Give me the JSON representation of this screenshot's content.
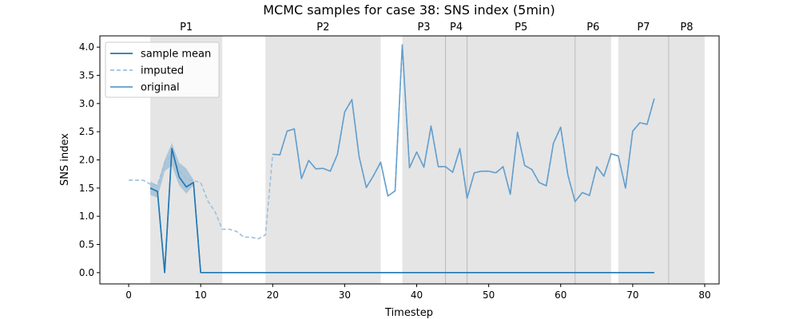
{
  "chart_data": {
    "type": "line",
    "title": "MCMC samples for case 38: SNS index (5min)",
    "xlabel": "Timestep",
    "ylabel": "SNS index",
    "xlim": [
      -4,
      82
    ],
    "ylim": [
      -0.2,
      4.2
    ],
    "xticks": [
      0,
      10,
      20,
      30,
      40,
      50,
      60,
      70,
      80
    ],
    "yticks": [
      0.0,
      0.5,
      1.0,
      1.5,
      2.0,
      2.5,
      3.0,
      3.5,
      4.0
    ],
    "ytick_labels": [
      "0.0",
      "0.5",
      "1.0",
      "1.5",
      "2.0",
      "2.5",
      "3.0",
      "3.5",
      "4.0"
    ],
    "grid": false,
    "legend_position": "top-left",
    "periods": [
      {
        "label": "P1",
        "start": 3,
        "end": 13
      },
      {
        "label": "P2",
        "start": 19,
        "end": 35
      },
      {
        "label": "P3",
        "start": 38,
        "end": 44
      },
      {
        "label": "P4",
        "start": 44,
        "end": 47
      },
      {
        "label": "P5",
        "start": 47,
        "end": 62
      },
      {
        "label": "P6",
        "start": 62,
        "end": 67
      },
      {
        "label": "P7",
        "start": 68,
        "end": 75
      },
      {
        "label": "P8",
        "start": 75,
        "end": 80
      }
    ],
    "period_color": "#e5e5e5",
    "series": [
      {
        "name": "sample mean",
        "color": "#1f77b4",
        "style": "solid",
        "x": [
          3,
          4,
          5,
          6,
          7,
          8,
          9,
          10,
          11,
          12,
          13,
          20,
          30,
          40,
          50,
          60,
          70,
          73
        ],
        "y": [
          1.5,
          1.44,
          0.0,
          2.2,
          1.7,
          1.52,
          1.6,
          0.0,
          0.0,
          0.0,
          0.0,
          0.0,
          0.0,
          0.0,
          0.0,
          0.0,
          0.0,
          0.0
        ]
      },
      {
        "name": "imputed",
        "color": "#9ec0dc",
        "style": "dashed",
        "x": [
          0,
          1,
          2,
          3,
          4,
          5,
          6,
          7,
          8,
          9,
          10,
          11,
          12,
          13,
          14,
          15,
          16,
          17,
          18,
          19,
          20,
          21,
          22,
          23,
          24,
          25,
          26,
          27,
          28,
          29,
          30,
          31,
          32,
          33,
          34,
          35,
          36,
          37,
          38,
          39,
          40,
          41,
          42,
          43,
          44,
          45,
          46,
          47,
          48,
          49,
          50,
          51,
          52,
          53,
          54,
          55,
          56,
          57,
          58,
          59,
          60,
          61,
          62,
          63,
          64,
          65,
          66,
          67,
          68,
          69,
          70,
          71,
          72,
          73
        ],
        "y": [
          1.64,
          1.64,
          1.64,
          1.57,
          1.55,
          1.95,
          2.1,
          1.82,
          1.66,
          1.63,
          1.6,
          1.27,
          1.08,
          0.77,
          0.77,
          0.73,
          0.63,
          0.63,
          0.6,
          0.67,
          2.1,
          2.09,
          2.51,
          2.55,
          1.67,
          1.99,
          1.84,
          1.85,
          1.8,
          2.1,
          2.85,
          3.07,
          2.06,
          1.51,
          1.72,
          1.96,
          1.36,
          1.45,
          4.04,
          1.86,
          2.14,
          1.87,
          2.6,
          1.88,
          1.88,
          1.78,
          2.2,
          1.32,
          1.77,
          1.8,
          1.8,
          1.77,
          1.88,
          1.39,
          2.49,
          1.9,
          1.83,
          1.6,
          1.54,
          2.3,
          2.58,
          1.73,
          1.26,
          1.42,
          1.37,
          1.88,
          1.71,
          2.11,
          2.07,
          1.5,
          2.51,
          2.66,
          2.63,
          3.09
        ]
      },
      {
        "name": "original",
        "color": "#5f9ccb",
        "style": "solid",
        "x": [
          3,
          4,
          5,
          6,
          7,
          8,
          9,
          10,
          null,
          20,
          21,
          22,
          23,
          24,
          25,
          26,
          27,
          28,
          29,
          30,
          31,
          32,
          33,
          34,
          35,
          36,
          37,
          38,
          39,
          40,
          41,
          42,
          43,
          44,
          45,
          46,
          47,
          48,
          49,
          50,
          51,
          52,
          53,
          54,
          55,
          56,
          57,
          58,
          59,
          60,
          61,
          62,
          63,
          64,
          65,
          66,
          67,
          68,
          69,
          70,
          71,
          72,
          73
        ],
        "y": [
          1.5,
          1.44,
          0.0,
          2.2,
          1.7,
          1.52,
          1.6,
          0.0,
          null,
          2.1,
          2.09,
          2.51,
          2.55,
          1.67,
          1.99,
          1.84,
          1.85,
          1.8,
          2.1,
          2.85,
          3.07,
          2.06,
          1.51,
          1.72,
          1.96,
          1.36,
          1.45,
          4.04,
          1.86,
          2.14,
          1.87,
          2.6,
          1.88,
          1.88,
          1.78,
          2.2,
          1.32,
          1.77,
          1.8,
          1.8,
          1.77,
          1.88,
          1.39,
          2.49,
          1.9,
          1.83,
          1.6,
          1.54,
          2.3,
          2.58,
          1.73,
          1.26,
          1.42,
          1.37,
          1.88,
          1.71,
          2.11,
          2.07,
          1.5,
          2.51,
          2.66,
          2.63,
          3.09
        ]
      }
    ],
    "uncertainty_band": {
      "color": "#1f77b4",
      "x": [
        3,
        4,
        5,
        6,
        7,
        8,
        9
      ],
      "lower": [
        1.38,
        1.33,
        1.8,
        1.9,
        1.55,
        1.4,
        1.55
      ],
      "upper": [
        1.62,
        1.55,
        2.0,
        2.3,
        1.95,
        1.85,
        1.65
      ]
    }
  }
}
